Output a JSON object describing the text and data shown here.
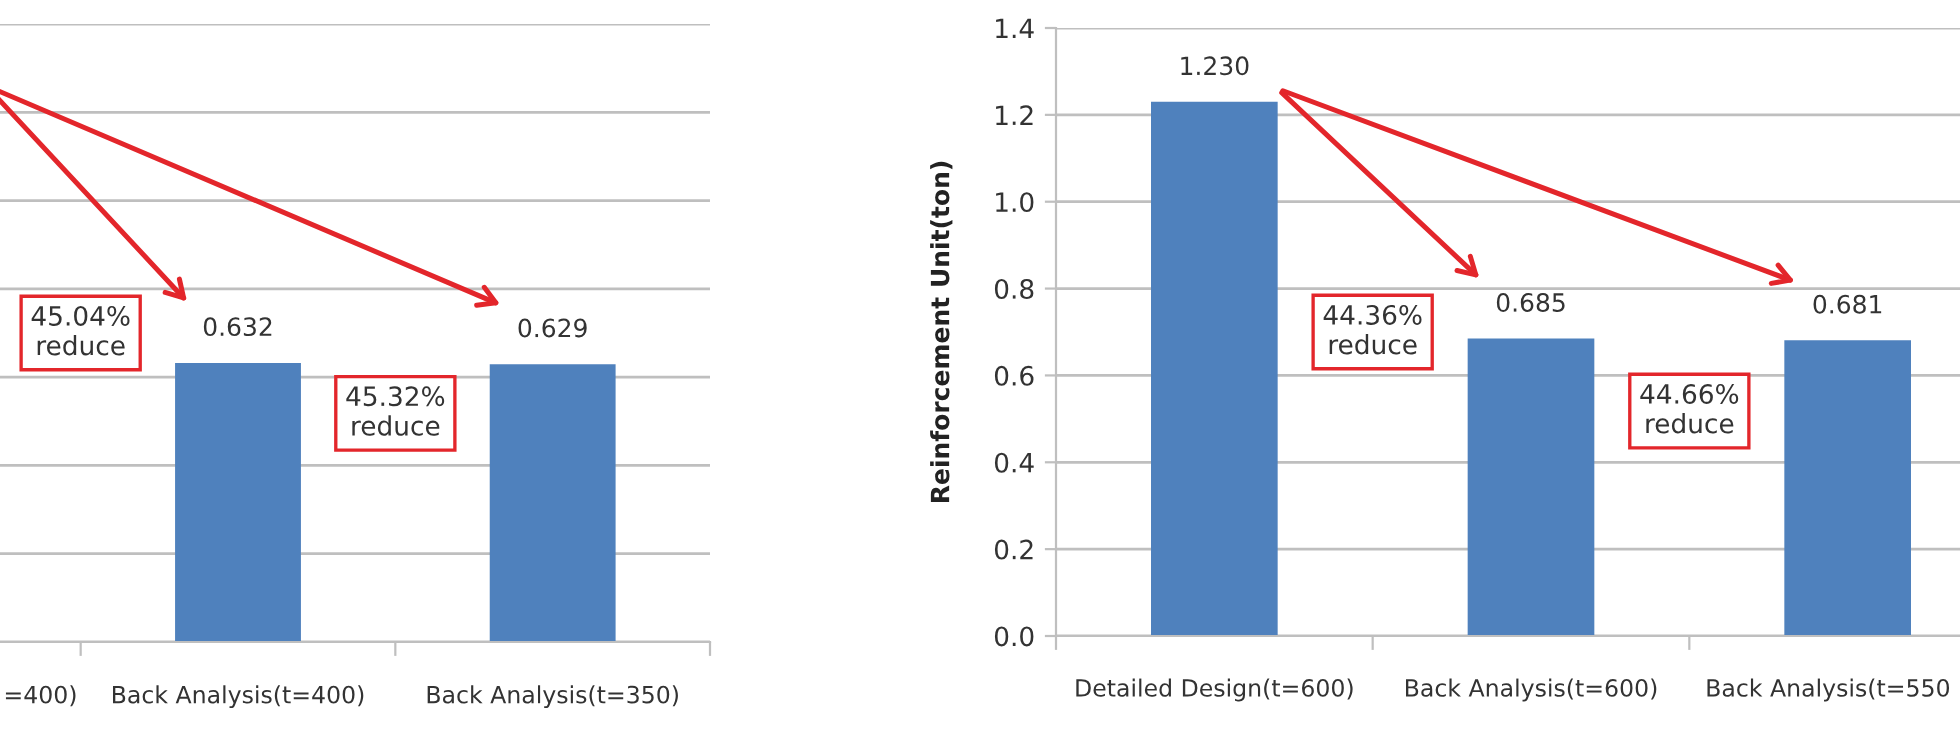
{
  "chart_data": [
    {
      "type": "bar",
      "categories": [
        "=400)",
        "Back Analysis(t=400)",
        "Back Analysis(t=350)"
      ],
      "values": [
        null,
        0.632,
        0.629
      ],
      "value_labels": [
        null,
        "0.632",
        "0.629"
      ],
      "color": "#4f81bd",
      "ylim": [
        0,
        1.4
      ],
      "yticks": [
        {
          "value": 0,
          "label": null
        },
        {
          "value": 0.2,
          "label": null
        },
        {
          "value": 0.4,
          "label": null
        },
        {
          "value": 0.6,
          "label": null
        },
        {
          "value": 0.8,
          "label": null
        },
        {
          "value": 1.0,
          "label": null
        },
        {
          "value": 1.2,
          "label": null
        },
        {
          "value": 1.4,
          "label": null
        }
      ],
      "tick_labels": "x",
      "grid": "y",
      "annotations": [
        "45.04%\nreduce",
        "45.32%\nreduce"
      ]
    },
    {
      "type": "bar",
      "categories": [
        "Detailed Design(t=600)",
        "Back Analysis(t=600)",
        "Back Analysis(t=550"
      ],
      "values": [
        1.23,
        0.685,
        0.681
      ],
      "value_labels": [
        "1.230",
        "0.685",
        "0.681"
      ],
      "color": "#4f81bd",
      "ylabel": "Reinforcement Unit(ton)",
      "ylim": [
        0,
        1.4
      ],
      "yticks": [
        {
          "value": 0,
          "label": "0.0"
        },
        {
          "value": 0.2,
          "label": "0.2"
        },
        {
          "value": 0.4,
          "label": "0.4"
        },
        {
          "value": 0.6,
          "label": "0.6"
        },
        {
          "value": 0.8,
          "label": "0.8"
        },
        {
          "value": 1.0,
          "label": "1.0"
        },
        {
          "value": 1.2,
          "label": "1.2"
        },
        {
          "value": 1.4,
          "label": "1.4"
        }
      ],
      "grid": "y",
      "annotations": [
        "44.36%\nreduce",
        "44.66%\nreduce"
      ]
    }
  ]
}
